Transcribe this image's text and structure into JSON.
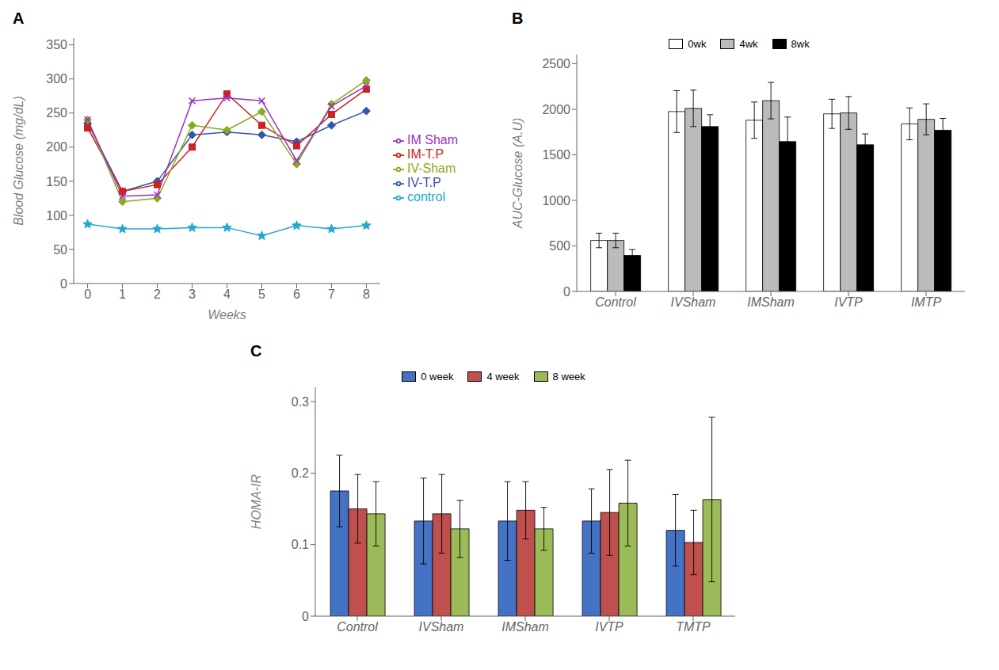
{
  "chart_data": [
    {
      "type": "line",
      "title": "A",
      "xlabel": "Weeks",
      "ylabel": "Blood Glucose (mg/dL)",
      "x": [
        0,
        1,
        2,
        3,
        4,
        5,
        6,
        7,
        8
      ],
      "xlim": [
        -0.4,
        8.4
      ],
      "xticks": [
        0,
        1,
        2,
        3,
        4,
        5,
        6,
        7,
        8
      ],
      "ylim": [
        0,
        360
      ],
      "yticks": [
        0,
        50,
        100,
        150,
        200,
        250,
        300,
        350
      ],
      "grid": false,
      "legend": "right",
      "series": [
        {
          "name": "IV-T.P",
          "color": "#3355aa",
          "marker": "diamond",
          "values": [
            235,
            135,
            150,
            218,
            222,
            218,
            208,
            232,
            253
          ]
        },
        {
          "name": "IM-T.P",
          "color": "#cc2222",
          "marker": "square",
          "values": [
            228,
            135,
            145,
            200,
            278,
            232,
            202,
            248,
            285
          ]
        },
        {
          "name": "IV-Sham",
          "color": "#88aa22",
          "marker": "diamond",
          "values": [
            240,
            120,
            125,
            232,
            225,
            252,
            175,
            263,
            298
          ]
        },
        {
          "name": "IM Sham",
          "color": "#9933bb",
          "marker": "x",
          "values": [
            240,
            128,
            130,
            268,
            272,
            268,
            180,
            260,
            290
          ]
        },
        {
          "name": "control",
          "color": "#22aacc",
          "marker": "star",
          "values": [
            87,
            80,
            80,
            82,
            82,
            70,
            85,
            80,
            85
          ]
        }
      ]
    },
    {
      "type": "bar",
      "title": "B",
      "ylabel": "AUC-Glucose (A.U)",
      "categories": [
        "Control",
        "IVSham",
        "IMSham",
        "IVTP",
        "IMTP"
      ],
      "ylim": [
        0,
        2600
      ],
      "yticks": [
        0,
        500,
        1000,
        1500,
        2000,
        2500
      ],
      "grid": false,
      "legend": "top",
      "series": [
        {
          "name": "0wk",
          "color": "white",
          "values": [
            560,
            1975,
            1880,
            1950,
            1840
          ],
          "errors": [
            80,
            230,
            200,
            160,
            175
          ]
        },
        {
          "name": "4wk",
          "color": "#bbbbbb",
          "values": [
            560,
            2010,
            2095,
            1960,
            1890
          ],
          "errors": [
            80,
            200,
            200,
            180,
            170
          ]
        },
        {
          "name": "8wk",
          "color": "black",
          "values": [
            395,
            1810,
            1645,
            1610,
            1770
          ],
          "errors": [
            65,
            130,
            270,
            120,
            130
          ]
        }
      ]
    },
    {
      "type": "bar",
      "title": "C",
      "ylabel": "HOMA-IR",
      "categories": [
        "Control",
        "IVSham",
        "IMSham",
        "IVTP",
        "TMTP"
      ],
      "ylim": [
        0,
        0.32
      ],
      "yticks": [
        0,
        0.1,
        0.2,
        0.3
      ],
      "grid": false,
      "legend": "top",
      "series": [
        {
          "name": "0 week",
          "color": "#4472c4",
          "values": [
            0.175,
            0.133,
            0.133,
            0.133,
            0.12
          ],
          "errors": [
            0.05,
            0.06,
            0.055,
            0.045,
            0.05
          ]
        },
        {
          "name": "4 week",
          "color": "#c0504d",
          "values": [
            0.15,
            0.143,
            0.148,
            0.145,
            0.103
          ],
          "errors": [
            0.048,
            0.055,
            0.04,
            0.06,
            0.045
          ]
        },
        {
          "name": "8 week",
          "color": "#9bbb59",
          "values": [
            0.143,
            0.122,
            0.122,
            0.158,
            0.163
          ],
          "errors": [
            0.045,
            0.04,
            0.03,
            0.06,
            0.115
          ]
        }
      ]
    }
  ]
}
